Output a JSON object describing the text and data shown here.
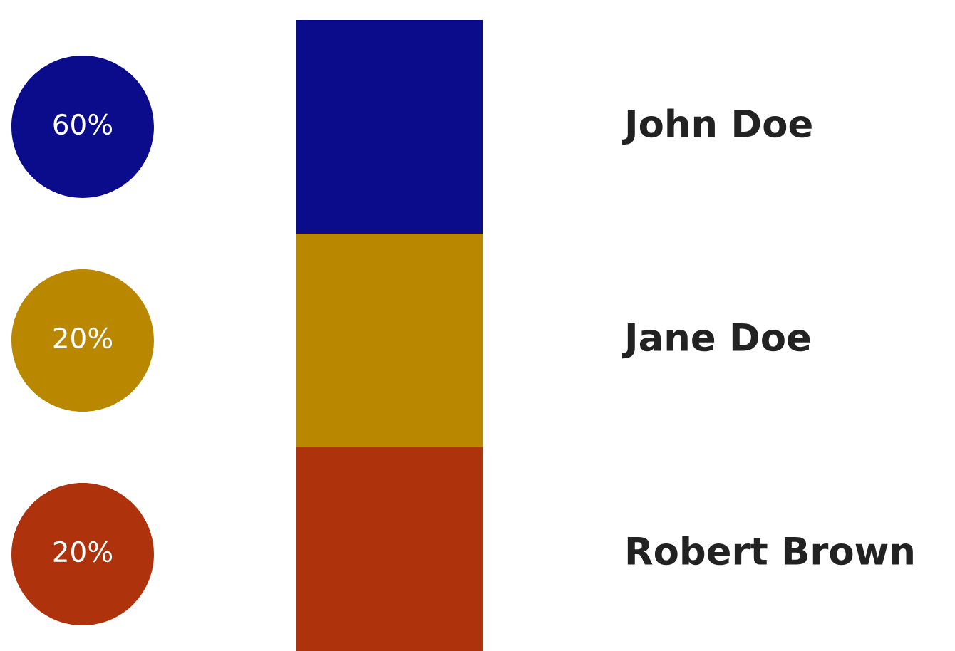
{
  "chart_data": {
    "type": "other",
    "categories": [
      "John Doe",
      "Jane Doe",
      "Robert Brown"
    ],
    "values": [
      60,
      20,
      20
    ],
    "value_labels": [
      "60%",
      "20%",
      "20%"
    ],
    "colors": [
      "#0b0c8c",
      "#b98700",
      "#ae320b"
    ]
  }
}
